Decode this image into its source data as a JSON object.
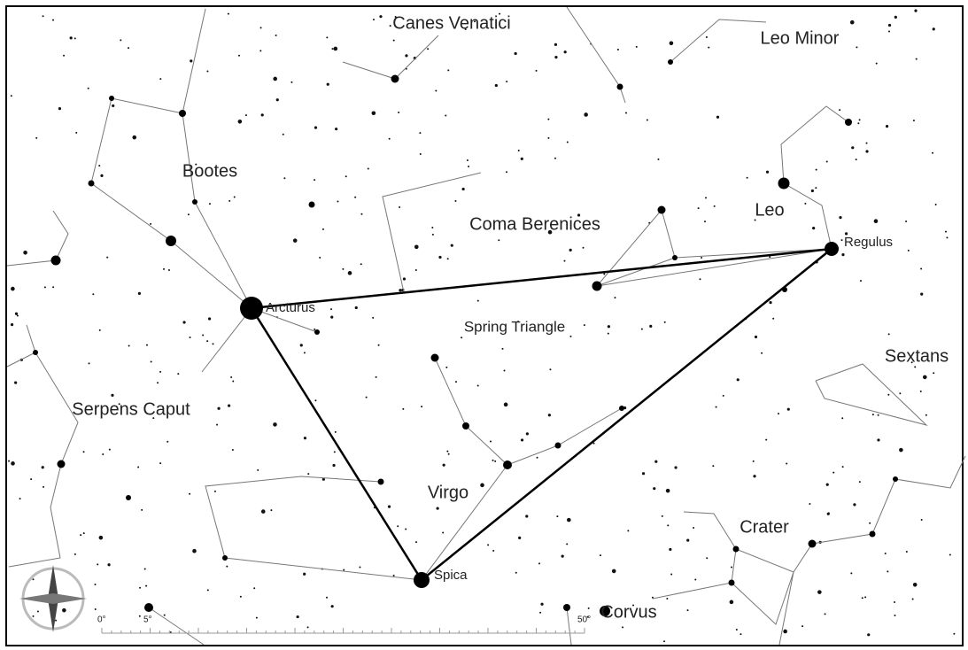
{
  "constellations": [
    "Canes Venatici",
    "Leo Minor",
    "Bootes",
    "Coma Berenices",
    "Leo",
    "Spring Triangle",
    "Sextans",
    "Serpens Caput",
    "Virgo",
    "Crater",
    "Corvus"
  ],
  "stars": [
    "Arcturus",
    "Regulus",
    "Spica"
  ],
  "scale": [
    "0°",
    "5°",
    "50°"
  ]
}
